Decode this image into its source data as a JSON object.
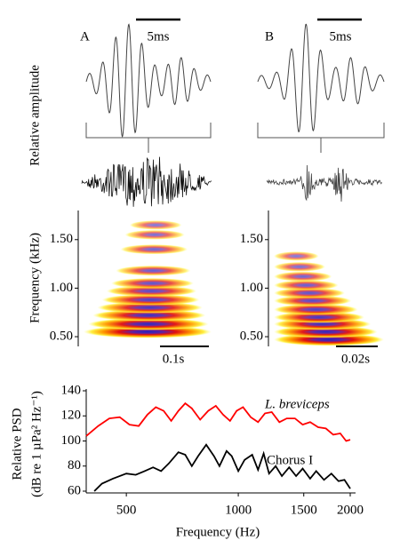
{
  "chart_data": [
    {
      "type": "oscillogram",
      "panel": "A",
      "scale_label": "5ms",
      "ylabel": "Relative amplitude"
    },
    {
      "type": "oscillogram",
      "panel": "B",
      "scale_label": "5ms"
    },
    {
      "type": "spectrogram",
      "ylabel": "Frequency (kHz)",
      "ylim": [
        0.4,
        1.8
      ],
      "yticks": [
        {
          "value": 0.5,
          "label": "0.50"
        },
        {
          "value": 1.0,
          "label": "1.00"
        },
        {
          "value": 1.5,
          "label": "1.50"
        }
      ],
      "scale_label": "0.1s",
      "bands": [
        0.55,
        0.63,
        0.72,
        0.8,
        0.88,
        0.97,
        1.05,
        1.18,
        1.4,
        1.55,
        1.65
      ]
    },
    {
      "type": "spectrogram",
      "ylim": [
        0.4,
        1.8
      ],
      "yticks": [
        {
          "value": 0.5,
          "label": "0.50"
        },
        {
          "value": 1.0,
          "label": "1.00"
        },
        {
          "value": 1.5,
          "label": "1.50"
        }
      ],
      "scale_label": "0.02s",
      "bands": [
        0.47,
        0.55,
        0.63,
        0.7,
        0.78,
        0.87,
        0.95,
        1.03,
        1.12,
        1.22,
        1.33
      ]
    },
    {
      "type": "line",
      "xlabel": "Frequency (Hz)",
      "ylabel": [
        "Relative  PSD",
        "(dB re 1 µPa² Hz⁻¹)"
      ],
      "log_x": true,
      "xlim": [
        390,
        2000
      ],
      "xticks": [
        500,
        1000,
        1500,
        2000
      ],
      "ylim": [
        60,
        140
      ],
      "yticks": [
        60,
        80,
        100,
        120,
        140
      ],
      "series": [
        {
          "name": "L. breviceps",
          "color": "#ff0000",
          "x": [
            390,
            420,
            450,
            480,
            510,
            540,
            570,
            600,
            630,
            660,
            690,
            720,
            750,
            790,
            830,
            870,
            910,
            950,
            990,
            1030,
            1080,
            1130,
            1180,
            1230,
            1290,
            1350,
            1420,
            1490,
            1560,
            1640,
            1720,
            1800,
            1880,
            1950,
            2000
          ],
          "values": [
            104,
            112,
            118,
            119,
            113,
            112,
            121,
            127,
            124,
            116,
            124,
            130,
            126,
            117,
            124,
            128,
            121,
            116,
            124,
            127,
            119,
            115,
            122,
            123,
            115,
            118,
            118,
            113,
            115,
            111,
            110,
            105,
            106,
            100,
            101
          ]
        },
        {
          "name": "Chorus I",
          "color": "#000000",
          "x": [
            410,
            430,
            460,
            500,
            530,
            560,
            590,
            620,
            650,
            690,
            720,
            750,
            780,
            820,
            860,
            890,
            930,
            960,
            1000,
            1040,
            1090,
            1130,
            1170,
            1210,
            1260,
            1310,
            1370,
            1430,
            1490,
            1560,
            1620,
            1700,
            1780,
            1860,
            1930,
            1980,
            2000
          ],
          "values": [
            60,
            66,
            70,
            74,
            73,
            76,
            79,
            76,
            82,
            91,
            89,
            80,
            88,
            97,
            88,
            80,
            92,
            88,
            76,
            85,
            89,
            77,
            90,
            74,
            80,
            72,
            79,
            72,
            78,
            70,
            76,
            69,
            74,
            68,
            69,
            64,
            62
          ]
        }
      ]
    }
  ]
}
